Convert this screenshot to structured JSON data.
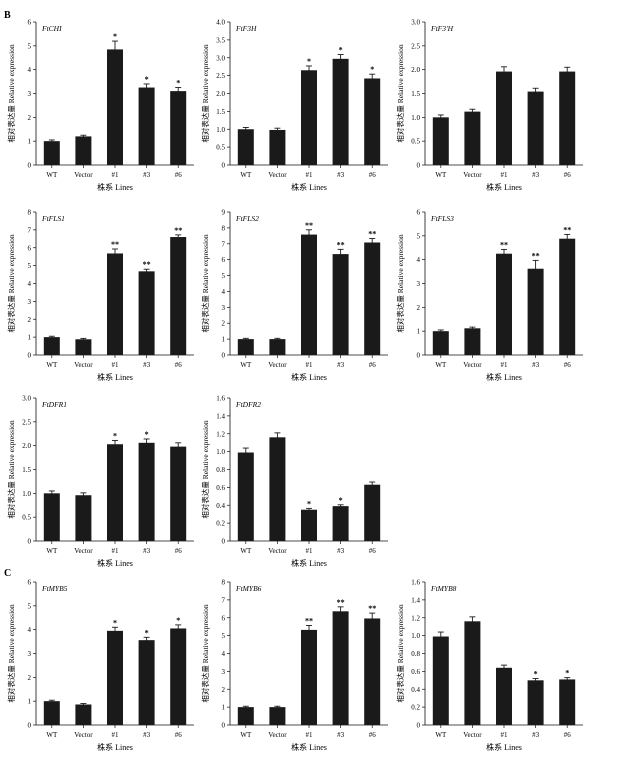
{
  "panel_letters": [
    "B",
    "C"
  ],
  "colors": {
    "bar": "#1a1a1a",
    "axis": "#111111"
  },
  "chart_data": [
    {
      "type": "bar",
      "panel": "B",
      "title": "FtCHI",
      "ylabel": "相对表达量 Relative expression",
      "xlabel": "株系 Lines",
      "categories": [
        "WT",
        "Vector",
        "#1",
        "#3",
        "#6"
      ],
      "values": [
        1.0,
        1.2,
        4.85,
        3.25,
        3.1
      ],
      "errors": [
        0.05,
        0.05,
        0.35,
        0.15,
        0.15
      ],
      "significance": [
        "",
        "",
        "*",
        "*",
        "*"
      ],
      "ylim": [
        0,
        6
      ],
      "yticks": [
        "0",
        "1",
        "2",
        "3",
        "4",
        "5",
        "6"
      ]
    },
    {
      "type": "bar",
      "panel": "B",
      "title": "FtF3H",
      "ylabel": "相对表达量 Relative expression",
      "xlabel": "株系 Lines",
      "categories": [
        "WT",
        "Vector",
        "#1",
        "#3",
        "#6"
      ],
      "values": [
        1.0,
        0.98,
        2.65,
        2.97,
        2.42
      ],
      "errors": [
        0.05,
        0.05,
        0.12,
        0.12,
        0.12
      ],
      "significance": [
        "",
        "",
        "*",
        "*",
        "*"
      ],
      "ylim": [
        0,
        4.0
      ],
      "yticks": [
        "0",
        "0.5",
        "1.0",
        "1.5",
        "2.0",
        "2.5",
        "3.0",
        "3.5",
        "4.0"
      ]
    },
    {
      "type": "bar",
      "panel": "B",
      "title": "FtF3'H",
      "ylabel": "相对表达量 Relative expression",
      "xlabel": "株系 Lines",
      "categories": [
        "WT",
        "Vector",
        "#1",
        "#3",
        "#6"
      ],
      "values": [
        1.0,
        1.12,
        1.96,
        1.54,
        1.96
      ],
      "errors": [
        0.05,
        0.05,
        0.1,
        0.07,
        0.09
      ],
      "significance": [
        "",
        "",
        "",
        "",
        ""
      ],
      "ylim": [
        0,
        3.0
      ],
      "yticks": [
        "0",
        "0.5",
        "1.0",
        "1.5",
        "2.0",
        "2.5",
        "3.0"
      ]
    },
    {
      "type": "bar",
      "panel": "B",
      "title": "FtFLS1",
      "ylabel": "相对表达量 Relative expression",
      "xlabel": "株系 Lines",
      "categories": [
        "WT",
        "Vector",
        "#1",
        "#3",
        "#6"
      ],
      "values": [
        1.0,
        0.88,
        5.68,
        4.68,
        6.6
      ],
      "errors": [
        0.05,
        0.05,
        0.25,
        0.12,
        0.12
      ],
      "significance": [
        "",
        "",
        "**",
        "**",
        "**"
      ],
      "ylim": [
        0,
        8
      ],
      "yticks": [
        "0",
        "1",
        "2",
        "3",
        "4",
        "5",
        "6",
        "7",
        "8"
      ]
    },
    {
      "type": "bar",
      "panel": "B",
      "title": "FtFLS2",
      "ylabel": "相对表达量 Relative expression",
      "xlabel": "株系 Lines",
      "categories": [
        "WT",
        "Vector",
        "#1",
        "#3",
        "#6"
      ],
      "values": [
        1.0,
        1.0,
        7.58,
        6.35,
        7.08
      ],
      "errors": [
        0.05,
        0.05,
        0.3,
        0.3,
        0.25
      ],
      "significance": [
        "",
        "",
        "**",
        "**",
        "**"
      ],
      "ylim": [
        0,
        9
      ],
      "yticks": [
        "0",
        "1",
        "2",
        "3",
        "4",
        "5",
        "6",
        "7",
        "8",
        "9"
      ]
    },
    {
      "type": "bar",
      "panel": "B",
      "title": "FtFLS3",
      "ylabel": "相对表达量 Relative expression",
      "xlabel": "株系 Lines",
      "categories": [
        "WT",
        "Vector",
        "#1",
        "#3",
        "#6"
      ],
      "values": [
        1.0,
        1.12,
        4.25,
        3.62,
        4.88
      ],
      "errors": [
        0.05,
        0.05,
        0.18,
        0.35,
        0.18
      ],
      "significance": [
        "",
        "",
        "**",
        "**",
        "**"
      ],
      "ylim": [
        0,
        6
      ],
      "yticks": [
        "0",
        "1",
        "2",
        "3",
        "4",
        "5",
        "6"
      ]
    },
    {
      "type": "bar",
      "panel": "B",
      "title": "FtDFR1",
      "ylabel": "相对表达量 Relative expression",
      "xlabel": "株系 Lines",
      "categories": [
        "WT",
        "Vector",
        "#1",
        "#3",
        "#6"
      ],
      "values": [
        1.0,
        0.96,
        2.03,
        2.06,
        1.98
      ],
      "errors": [
        0.05,
        0.05,
        0.08,
        0.08,
        0.08
      ],
      "significance": [
        "",
        "",
        "*",
        "*",
        ""
      ],
      "ylim": [
        0,
        3.0
      ],
      "yticks": [
        "0",
        "0.5",
        "1.0",
        "1.5",
        "2.0",
        "2.5",
        "3.0"
      ]
    },
    {
      "type": "bar",
      "panel": "B",
      "title": "FtDFR2",
      "ylabel": "相对表达量 Relative expression",
      "xlabel": "株系 Lines",
      "categories": [
        "WT",
        "Vector",
        "#1",
        "#3",
        "#6"
      ],
      "values": [
        0.99,
        1.16,
        0.35,
        0.39,
        0.63
      ],
      "errors": [
        0.05,
        0.05,
        0.015,
        0.015,
        0.03
      ],
      "significance": [
        "",
        "",
        "*",
        "*",
        ""
      ],
      "ylim": [
        0,
        1.6
      ],
      "yticks": [
        "0",
        "0.2",
        "0.4",
        "0.6",
        "0.8",
        "1.0",
        "1.2",
        "1.4",
        "1.6"
      ]
    },
    {
      "type": "bar",
      "panel": "C",
      "title": "FtMYB5",
      "ylabel": "相对表达量 Relative expression",
      "xlabel": "株系 Lines",
      "categories": [
        "WT",
        "Vector",
        "#1",
        "#3",
        "#6"
      ],
      "values": [
        1.0,
        0.86,
        3.95,
        3.56,
        4.05
      ],
      "errors": [
        0.04,
        0.04,
        0.15,
        0.12,
        0.15
      ],
      "significance": [
        "",
        "",
        "*",
        "*",
        "*"
      ],
      "ylim": [
        0,
        6
      ],
      "yticks": [
        "0",
        "1",
        "2",
        "3",
        "4",
        "5",
        "6"
      ]
    },
    {
      "type": "bar",
      "panel": "C",
      "title": "FtMYB6",
      "ylabel": "相对表达量 Relative expression",
      "xlabel": "株系 Lines",
      "categories": [
        "WT",
        "Vector",
        "#1",
        "#3",
        "#6"
      ],
      "values": [
        1.0,
        1.0,
        5.32,
        6.36,
        5.96
      ],
      "errors": [
        0.05,
        0.05,
        0.25,
        0.25,
        0.3
      ],
      "significance": [
        "",
        "",
        "**",
        "**",
        "**"
      ],
      "ylim": [
        0,
        8
      ],
      "yticks": [
        "0",
        "1",
        "2",
        "3",
        "4",
        "5",
        "6",
        "7",
        "8"
      ]
    },
    {
      "type": "bar",
      "panel": "C",
      "title": "FtMYB8",
      "ylabel": "相对表达量 Relative expression",
      "xlabel": "株系 Lines",
      "categories": [
        "WT",
        "Vector",
        "#1",
        "#3",
        "#6"
      ],
      "values": [
        0.99,
        1.16,
        0.64,
        0.5,
        0.51
      ],
      "errors": [
        0.05,
        0.05,
        0.03,
        0.02,
        0.02
      ],
      "significance": [
        "",
        "",
        "",
        "*",
        "*"
      ],
      "ylim": [
        0,
        1.6
      ],
      "yticks": [
        "0",
        "0.2",
        "0.4",
        "0.6",
        "0.8",
        "1.0",
        "1.2",
        "1.4",
        "1.6"
      ]
    }
  ]
}
